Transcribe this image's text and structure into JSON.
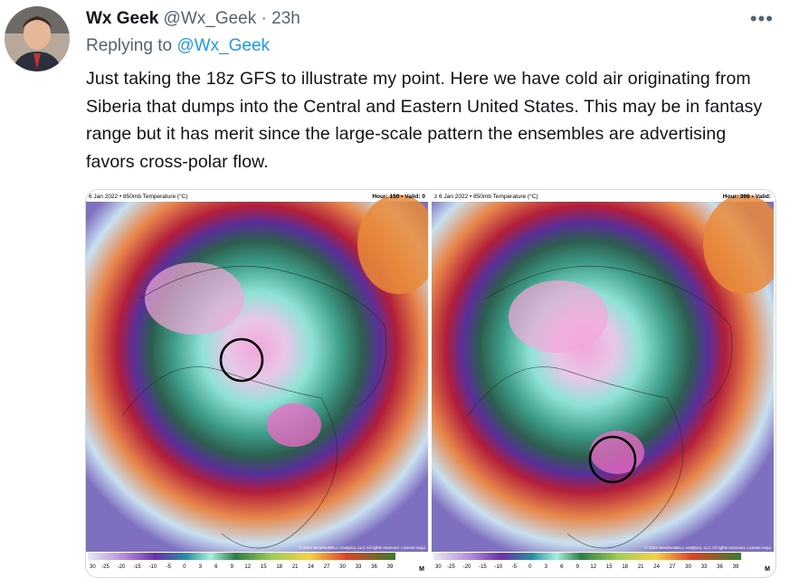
{
  "tweet": {
    "author": {
      "name": "Wx Geek",
      "handle": "@Wx_Geek",
      "separator": "·",
      "time": "23h"
    },
    "reply": {
      "label": "Replying to",
      "handle": "@Wx_Geek"
    },
    "text": "Just taking the 18z GFS to illustrate my point. Here we have cold air originating from Siberia that dumps into the Central and Eastern United States. This may be in fantasy range but it has merit since the large-scale pattern the ensembles are advertising favors cross-polar flow.",
    "images": [
      {
        "header_left": "6 Jan 2022 • 850mb Temperature (°C)",
        "header_right": "Hour: 150 • Valid: 0",
        "copyright": "© 2022 WeatherBELL Analytics, LLC All rights reserved. License requi",
        "corner": "M",
        "colorbar_labels": [
          "30",
          "-25",
          "-20",
          "-15",
          "-10",
          "-5",
          "0",
          "3",
          "6",
          "9",
          "12",
          "15",
          "18",
          "21",
          "24",
          "27",
          "30",
          "33",
          "36",
          "39"
        ]
      },
      {
        "header_left": "z 6 Jan 2022 • 850mb Temperature (°C)",
        "header_right": "Hour: 366 • Valid:",
        "copyright": "© 2022 WeatherBELL Analytics, LLC All rights reserved. License requi",
        "corner": "M",
        "colorbar_labels": [
          "30",
          "-25",
          "-20",
          "-15",
          "-10",
          "-5",
          "0",
          "3",
          "6",
          "9",
          "12",
          "15",
          "18",
          "21",
          "24",
          "27",
          "30",
          "33",
          "36",
          "39"
        ]
      }
    ]
  }
}
